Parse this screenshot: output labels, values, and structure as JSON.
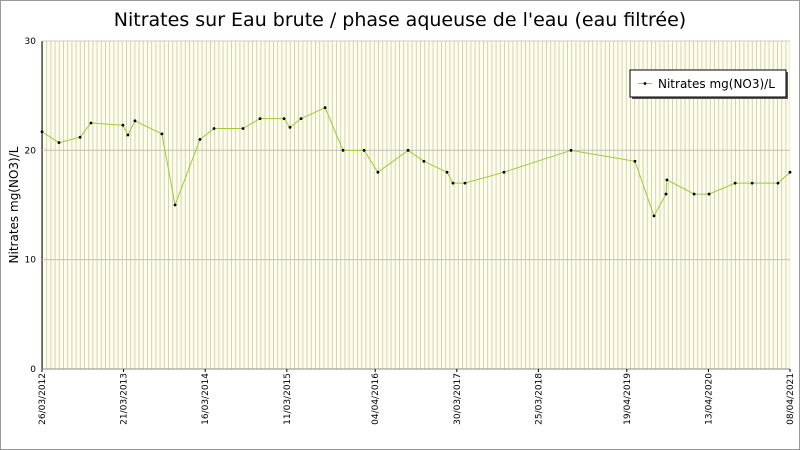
{
  "chart_data": {
    "type": "line",
    "title": "Nitrates sur Eau brute / phase aqueuse de l'eau (eau filtrée)",
    "y_label": "Nitrates mg(NO3)/L",
    "x": [
      "2012-03-26",
      "2012-06-09",
      "2012-09-10",
      "2012-10-28",
      "2013-03-18",
      "2013-04-09",
      "2013-05-10",
      "2013-09-06",
      "2013-11-03",
      "2014-02-21",
      "2014-04-24",
      "2014-08-30",
      "2014-11-13",
      "2015-02-27",
      "2015-03-25",
      "2015-05-13",
      "2015-08-27",
      "2015-11-14",
      "2016-02-15",
      "2016-04-16",
      "2016-08-27",
      "2016-11-05",
      "2017-02-15",
      "2017-03-13",
      "2017-05-05",
      "2017-10-24",
      "2018-08-16",
      "2019-05-25",
      "2019-08-17",
      "2019-10-09",
      "2019-10-13",
      "2020-02-10",
      "2020-04-16",
      "2020-08-09",
      "2020-10-23",
      "2021-02-14",
      "2021-04-08"
    ],
    "series": [
      {
        "name": "Nitrates mg(NO3)/L",
        "color": "#9acd32",
        "values": [
          21.7,
          20.7,
          21.2,
          22.5,
          22.3,
          21.4,
          22.7,
          21.5,
          15.0,
          21.0,
          22.0,
          22.0,
          22.9,
          22.9,
          22.1,
          22.9,
          23.9,
          20.0,
          20.0,
          18.0,
          20.0,
          19.0,
          18.0,
          17.0,
          17.0,
          18.0,
          20.0,
          19.0,
          14.0,
          16.0,
          17.3,
          16.0,
          16.0,
          17.0,
          17.0,
          17.0,
          18.0
        ]
      }
    ],
    "xlim": [
      "2012-03-26",
      "2021-04-08"
    ],
    "xticks": [
      {
        "value": "2012-03-26",
        "label": "26/03/2012"
      },
      {
        "value": "2013-03-21",
        "label": "21/03/2013"
      },
      {
        "value": "2014-03-16",
        "label": "16/03/2014"
      },
      {
        "value": "2015-03-11",
        "label": "11/03/2015"
      },
      {
        "value": "2016-04-04",
        "label": "04/04/2016"
      },
      {
        "value": "2017-03-30",
        "label": "30/03/2017"
      },
      {
        "value": "2018-03-25",
        "label": "25/03/2018"
      },
      {
        "value": "2019-04-19",
        "label": "19/04/2019"
      },
      {
        "value": "2020-04-13",
        "label": "13/04/2020"
      },
      {
        "value": "2021-04-08",
        "label": "08/04/2021"
      }
    ],
    "ylim": [
      0,
      30
    ],
    "yticks": [
      0,
      10,
      20,
      30
    ],
    "grid": true,
    "legend": "upper right"
  }
}
